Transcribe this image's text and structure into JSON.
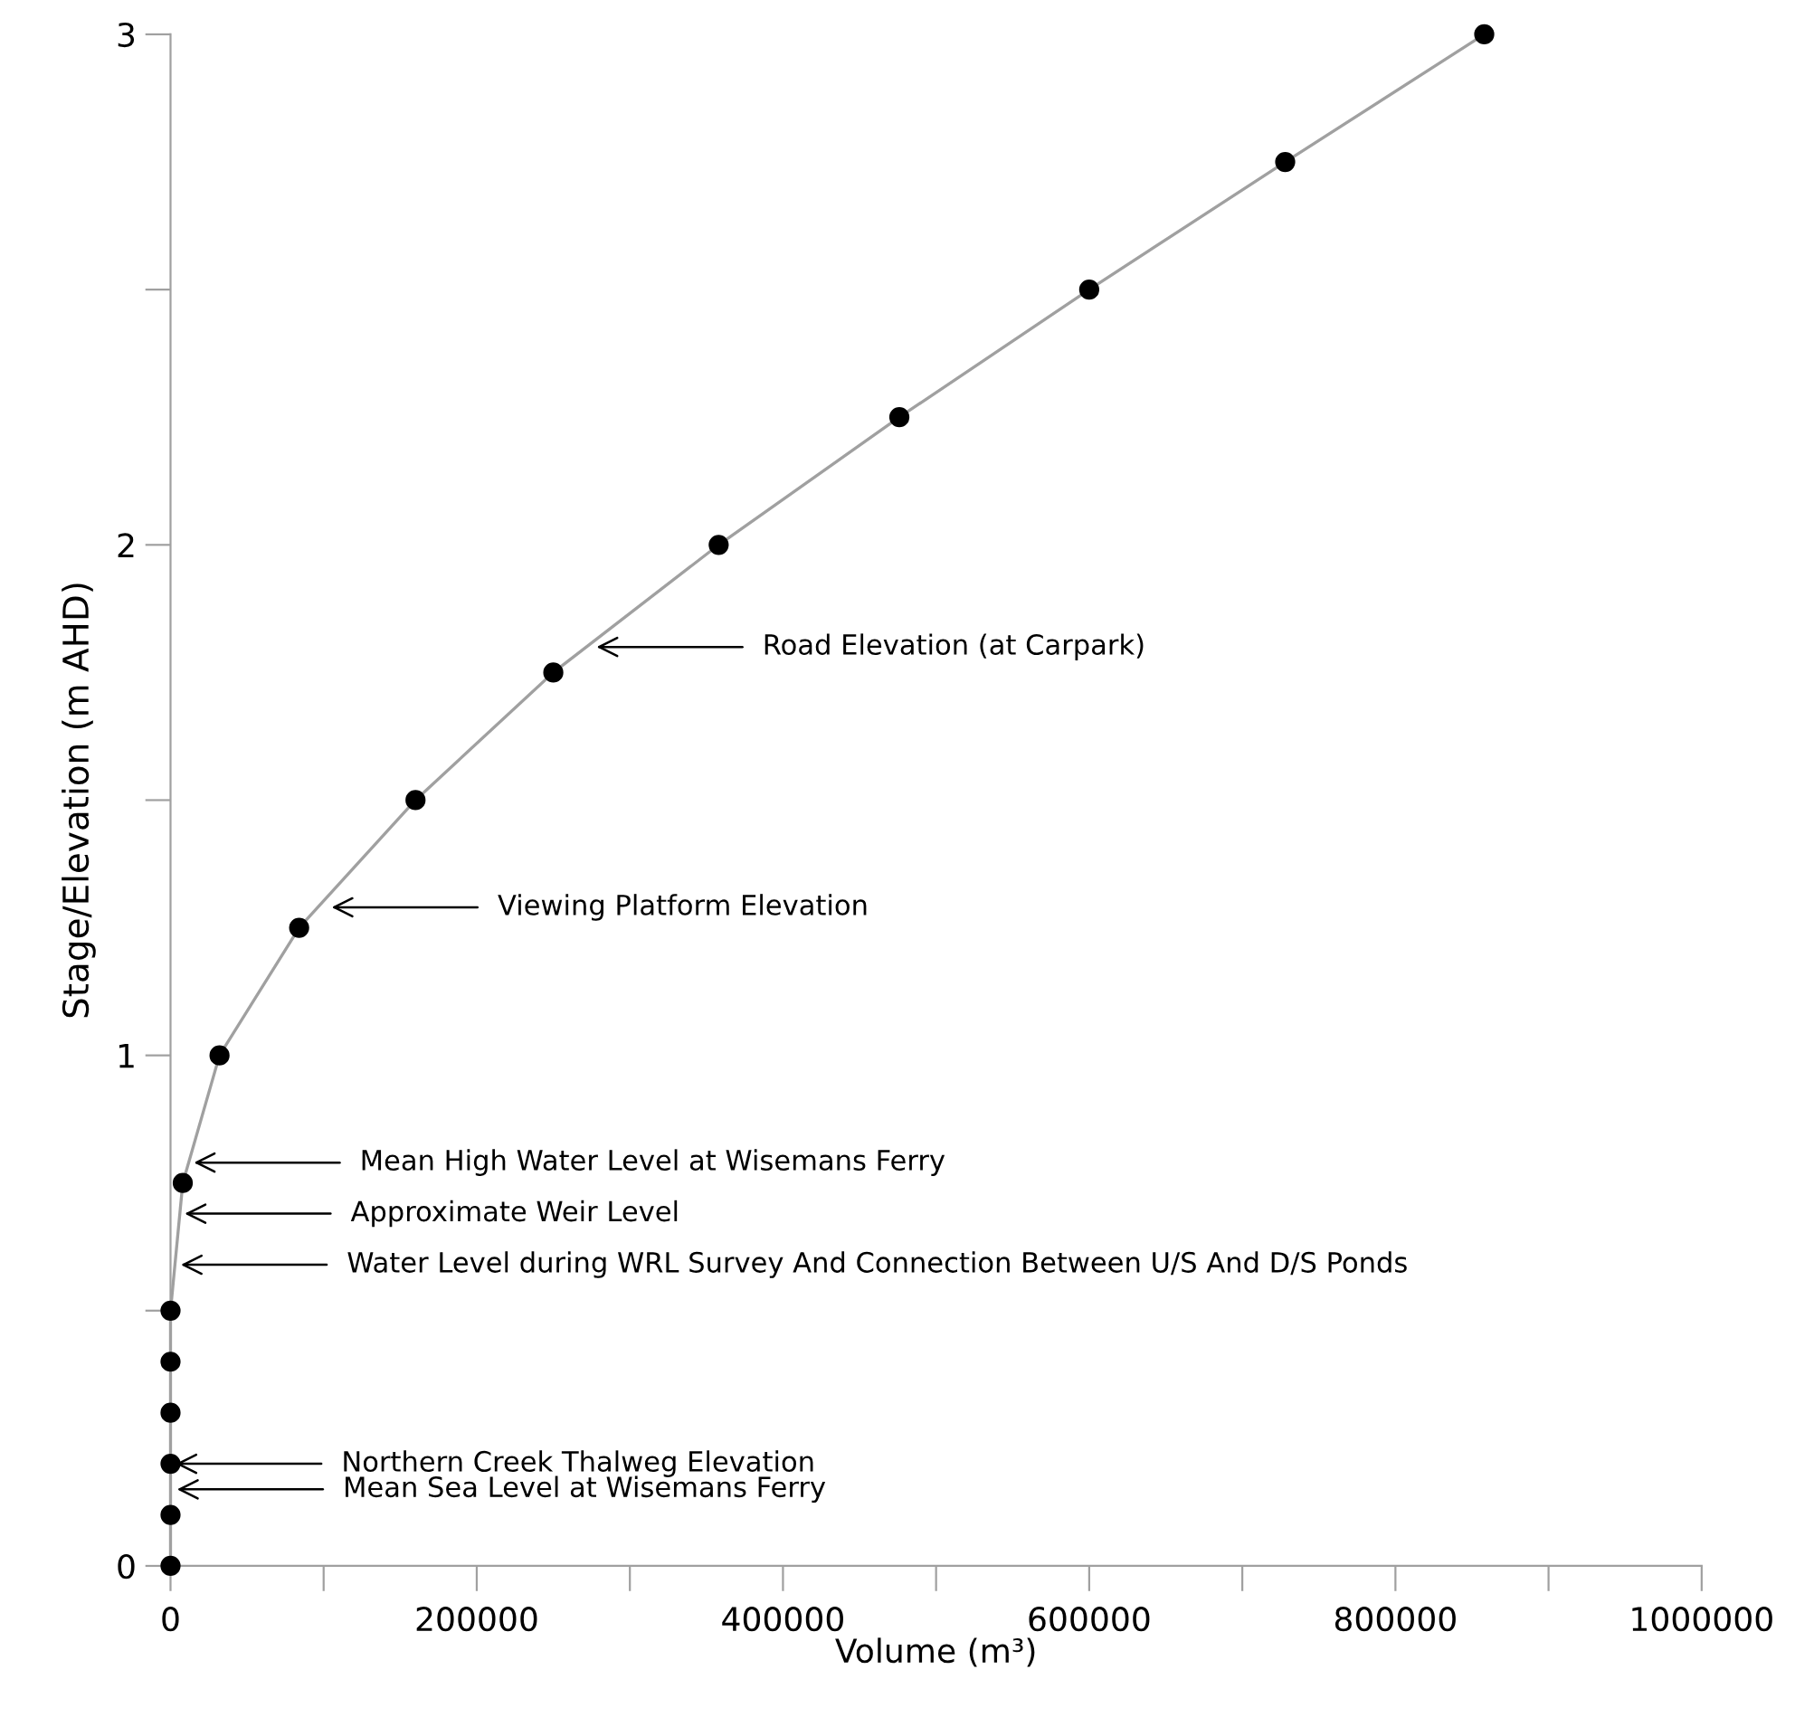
{
  "chart_data": {
    "type": "line",
    "xlabel": "Volume (m³)",
    "ylabel": "Stage/Elevation (m AHD)",
    "x": [
      0,
      0,
      0,
      0,
      0,
      0,
      8000,
      32000,
      84000,
      160000,
      250000,
      358000,
      476000,
      600000,
      728000,
      858000
    ],
    "series": [
      {
        "color": "#a0a0a0",
        "values": [
          0,
          0.1,
          0.2,
          0.3,
          0.4,
          0.5,
          0.75,
          1,
          1.25,
          1.5,
          1.75,
          2,
          2.25,
          2.5,
          2.75,
          3
        ]
      }
    ],
    "marker": "circle",
    "line_style": "solid",
    "grid": false,
    "legend": false,
    "xlim": [
      0,
      1000000
    ],
    "xticks": [
      0,
      {
        "value": 100000,
        "label": null
      },
      200000,
      {
        "value": 300000,
        "label": null
      },
      400000,
      {
        "value": 500000,
        "label": null
      },
      600000,
      {
        "value": 700000,
        "label": null
      },
      800000,
      {
        "value": 900000,
        "label": null
      },
      1000000
    ],
    "ylim": [
      0,
      3
    ],
    "yticks": [
      0,
      {
        "value": 0.5,
        "label": null
      },
      1,
      {
        "value": 1.5,
        "label": null
      },
      2,
      {
        "value": 2.5,
        "label": null
      },
      3
    ],
    "annotations": [
      {
        "text": "Road Elevation (at Carpark)",
        "x": 275000,
        "y": 1.8
      },
      {
        "text": "Viewing Platform Elevation",
        "x": 102000,
        "y": 1.29
      },
      {
        "text": "Mean High Water Level at Wisemans Ferry",
        "x": 12000,
        "y": 0.79
      },
      {
        "text": "Approximate Weir Level",
        "x": 6000,
        "y": 0.69
      },
      {
        "text": "Water Level during WRL Survey And Connection Between U/S And D/S Ponds",
        "x": 3500,
        "y": 0.59
      },
      {
        "text": "Northern Creek Thalweg Elevation",
        "x": 0,
        "y": 0.2
      },
      {
        "text": "Mean Sea Level at Wisemans Ferry",
        "x": 1000,
        "y": 0.15
      }
    ]
  }
}
